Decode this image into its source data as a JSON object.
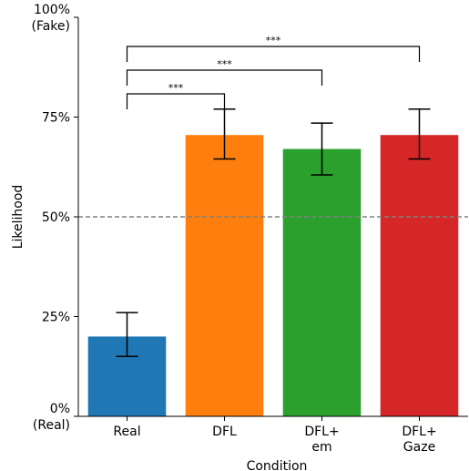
{
  "chart_data": {
    "type": "bar",
    "xlabel": "Condition",
    "ylabel": "Likelihood",
    "ylim": [
      0,
      100
    ],
    "yticks": [
      {
        "value": 0,
        "lines": [
          "0%",
          "(Real)"
        ]
      },
      {
        "value": 25,
        "lines": [
          "25%"
        ]
      },
      {
        "value": 50,
        "lines": [
          "50%"
        ]
      },
      {
        "value": 75,
        "lines": [
          "75%"
        ]
      },
      {
        "value": 100,
        "lines": [
          "100%",
          "(Fake)"
        ]
      }
    ],
    "categories": [
      {
        "lines": [
          "Real"
        ],
        "value": 20,
        "err_low": 15,
        "err_high": 26,
        "color": "#1f77b4"
      },
      {
        "lines": [
          "DFL"
        ],
        "value": 70.5,
        "err_low": 64.5,
        "err_high": 77,
        "color": "#ff7f0e"
      },
      {
        "lines": [
          "DFL+",
          "em"
        ],
        "value": 67,
        "err_low": 60.5,
        "err_high": 73.5,
        "color": "#2ca02c"
      },
      {
        "lines": [
          "DFL+",
          "Gaze"
        ],
        "value": 70.5,
        "err_low": 64.5,
        "err_high": 77,
        "color": "#d62728"
      }
    ],
    "reference_line": {
      "value": 50,
      "style": "dashed",
      "color": "#808080"
    },
    "significance": [
      {
        "from": 0,
        "to": 1,
        "label": "***"
      },
      {
        "from": 0,
        "to": 2,
        "label": "***"
      },
      {
        "from": 0,
        "to": 3,
        "label": "***"
      }
    ]
  }
}
